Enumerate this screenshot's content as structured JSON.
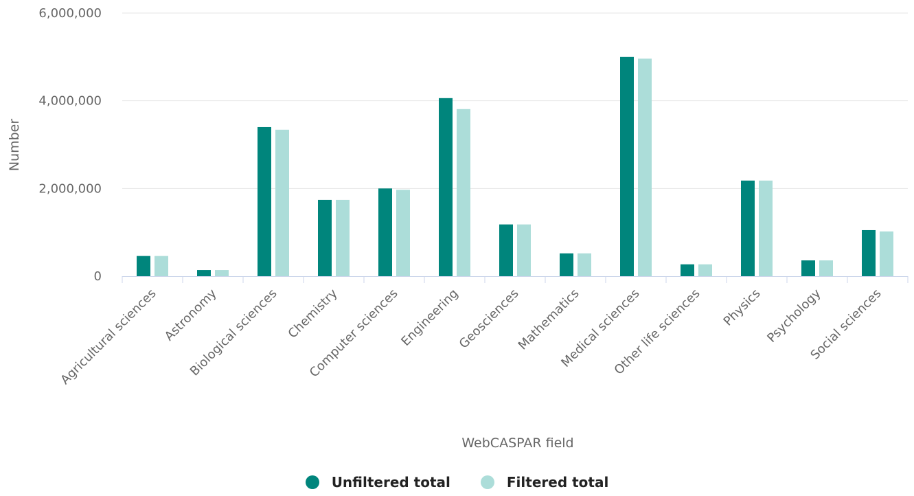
{
  "chart_data": {
    "type": "bar",
    "xlabel": "WebCASPAR field",
    "ylabel": "Number",
    "ylim": [
      0,
      6000000
    ],
    "yticks": [
      0,
      2000000,
      4000000,
      6000000
    ],
    "ytick_labels": [
      "0",
      "2,000,000",
      "4,000,000",
      "6,000,000"
    ],
    "grid": true,
    "legend_position": "bottom-center",
    "categories": [
      "Agricultural sciences",
      "Astronomy",
      "Biological sciences",
      "Chemistry",
      "Computer sciences",
      "Engineering",
      "Geosciences",
      "Mathematics",
      "Medical sciences",
      "Other life sciences",
      "Physics",
      "Psychology",
      "Social sciences"
    ],
    "series": [
      {
        "name": "Unfiltered total",
        "color": "#00857c",
        "values": [
          460000,
          140000,
          3400000,
          1740000,
          2000000,
          4060000,
          1180000,
          520000,
          5000000,
          270000,
          2180000,
          360000,
          1050000
        ]
      },
      {
        "name": "Filtered total",
        "color": "#acddd9",
        "values": [
          460000,
          140000,
          3340000,
          1740000,
          1970000,
          3810000,
          1180000,
          520000,
          4960000,
          270000,
          2180000,
          360000,
          1020000
        ]
      }
    ]
  }
}
